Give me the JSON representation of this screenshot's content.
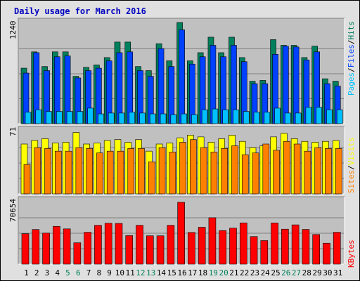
{
  "title": "Daily usage for March 2016",
  "panels": {
    "hits": {
      "max_label": "1240",
      "legend": [
        "Pages",
        "/",
        "Files",
        "/",
        "Hits"
      ],
      "legend_colors": [
        "#00c0ff",
        "#000000",
        "#0040ff",
        "#000000",
        "#00805c"
      ]
    },
    "visits": {
      "max_label": "71",
      "legend": [
        "Sites",
        "/",
        "Visits"
      ],
      "legend_colors": [
        "#ff8000",
        "#000000",
        "#ffff00"
      ]
    },
    "kbytes": {
      "max_label": "70654",
      "legend": [
        "KBytes"
      ],
      "legend_colors": [
        "#ff0000"
      ]
    }
  },
  "colors": {
    "hits": "#00805c",
    "files": "#0040ff",
    "pages": "#00c0ff",
    "visits": "#ffff00",
    "sites": "#ff8000",
    "kbytes": "#ff0000",
    "weekend": "#00805c",
    "weekday": "#000000",
    "plot_bg": "#c0c0c0"
  },
  "chart_data": {
    "type": "bar",
    "categories": [
      "1",
      "2",
      "3",
      "4",
      "5",
      "6",
      "7",
      "8",
      "9",
      "10",
      "11",
      "12",
      "13",
      "14",
      "15",
      "16",
      "17",
      "18",
      "19",
      "20",
      "21",
      "22",
      "23",
      "24",
      "25",
      "26",
      "27",
      "28",
      "29",
      "30",
      "31"
    ],
    "weekend_days": [
      "5",
      "6",
      "12",
      "13",
      "19",
      "20",
      "26",
      "27"
    ],
    "groups": [
      {
        "name": "hits",
        "ylim": [
          0,
          1240
        ],
        "series": [
          {
            "name": "Hits",
            "values": [
              680,
              880,
              700,
              880,
              880,
              580,
              690,
              720,
              810,
              1000,
              1000,
              700,
              650,
              980,
              770,
              1240,
              770,
              870,
              1060,
              870,
              1060,
              810,
              520,
              530,
              1030,
              960,
              960,
              810,
              950,
              550,
              520
            ]
          },
          {
            "name": "Files",
            "values": [
              620,
              870,
              650,
              820,
              830,
              560,
              650,
              680,
              770,
              870,
              880,
              650,
              580,
              920,
              700,
              1150,
              730,
              820,
              960,
              820,
              960,
              760,
              490,
              490,
              850,
              950,
              940,
              780,
              880,
              490,
              460
            ]
          },
          {
            "name": "Pages",
            "values": [
              140,
              170,
              150,
              150,
              150,
              150,
              190,
              120,
              130,
              130,
              140,
              130,
              120,
              120,
              110,
              120,
              110,
              170,
              180,
              170,
              170,
              150,
              140,
              140,
              190,
              130,
              130,
              200,
              200,
              170,
              170
            ]
          }
        ]
      },
      {
        "name": "visits",
        "ylim": [
          0,
          71
        ],
        "series": [
          {
            "name": "Visits",
            "values": [
              56,
              60,
              62,
              57,
              58,
              69,
              56,
              57,
              60,
              61,
              58,
              61,
              48,
              56,
              57,
              63,
              66,
              64,
              58,
              62,
              66,
              59,
              52,
              54,
              64,
              68,
              62,
              59,
              58,
              59,
              60
            ]
          },
          {
            "name": "Sites",
            "values": [
              33,
              52,
              51,
              48,
              48,
              52,
              51,
              46,
              48,
              48,
              51,
              51,
              36,
              52,
              47,
              58,
              61,
              52,
              47,
              51,
              54,
              44,
              46,
              56,
              49,
              59,
              56,
              48,
              52,
              51,
              51
            ]
          }
        ]
      },
      {
        "name": "kbytes",
        "ylim": [
          0,
          70654
        ],
        "series": [
          {
            "name": "KBytes",
            "values": [
              34000,
              38700,
              34700,
              42200,
              39400,
              23900,
              35600,
              43400,
              45700,
              45500,
              31900,
              43400,
              31700,
              31700,
              43400,
              69100,
              35400,
              41200,
              51900,
              37500,
              40200,
              46100,
              30800,
              26300,
              46000,
              39100,
              43900,
              38800,
              33100,
              23400,
              35600
            ]
          }
        ]
      }
    ]
  }
}
